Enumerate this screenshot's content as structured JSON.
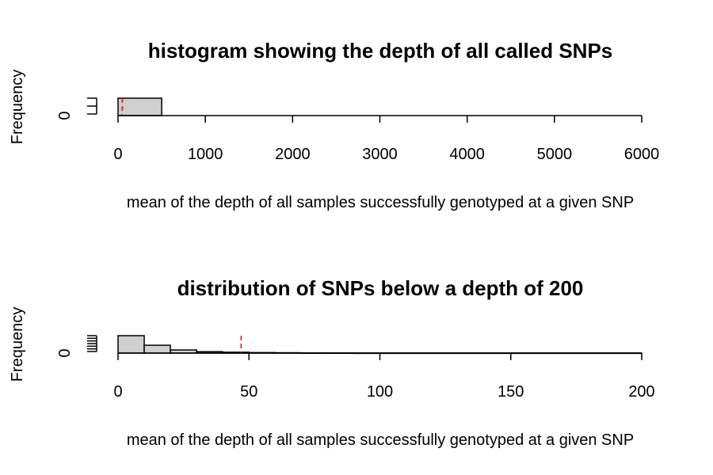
{
  "chart_data": [
    {
      "type": "bar",
      "title": "histogram showing the depth of all called SNPs",
      "xlabel": "mean of the depth of all samples successfully genotyped at a given SNP",
      "ylabel": "Frequency",
      "xlim": [
        0,
        6000
      ],
      "x_ticks": [
        "0",
        "1000",
        "2000",
        "3000",
        "4000",
        "5000",
        "6000"
      ],
      "y_ticks": [
        "0"
      ],
      "ylim": [
        0,
        1
      ],
      "bins": [
        {
          "start": 0,
          "end": 500,
          "value": 1
        }
      ],
      "mean_line": 47,
      "mean_line_color": "#ff0000",
      "bar_color": "#d0d0d0"
    },
    {
      "type": "bar",
      "title": "distribution of SNPs below a depth of 200",
      "xlabel": "mean of the depth of all samples successfully genotyped at a given SNP",
      "ylabel": "Frequency",
      "xlim": [
        0,
        200
      ],
      "x_ticks": [
        "0",
        "50",
        "100",
        "150",
        "200"
      ],
      "y_ticks": [
        "0"
      ],
      "ylim": [
        0,
        1
      ],
      "bins": [
        {
          "start": 0,
          "end": 10,
          "value": 1
        },
        {
          "start": 10,
          "end": 20,
          "value": 0.45
        },
        {
          "start": 20,
          "end": 30,
          "value": 0.18
        },
        {
          "start": 30,
          "end": 40,
          "value": 0.08
        },
        {
          "start": 40,
          "end": 50,
          "value": 0.05
        },
        {
          "start": 50,
          "end": 60,
          "value": 0.03
        },
        {
          "start": 60,
          "end": 70,
          "value": 0.02
        },
        {
          "start": 70,
          "end": 80,
          "value": 0.01
        },
        {
          "start": 80,
          "end": 90,
          "value": 0.01
        },
        {
          "start": 90,
          "end": 200,
          "value": 0.005
        }
      ],
      "mean_line": 47,
      "mean_line_color": "#ff0000",
      "bar_color": "#d0d0d0"
    }
  ]
}
